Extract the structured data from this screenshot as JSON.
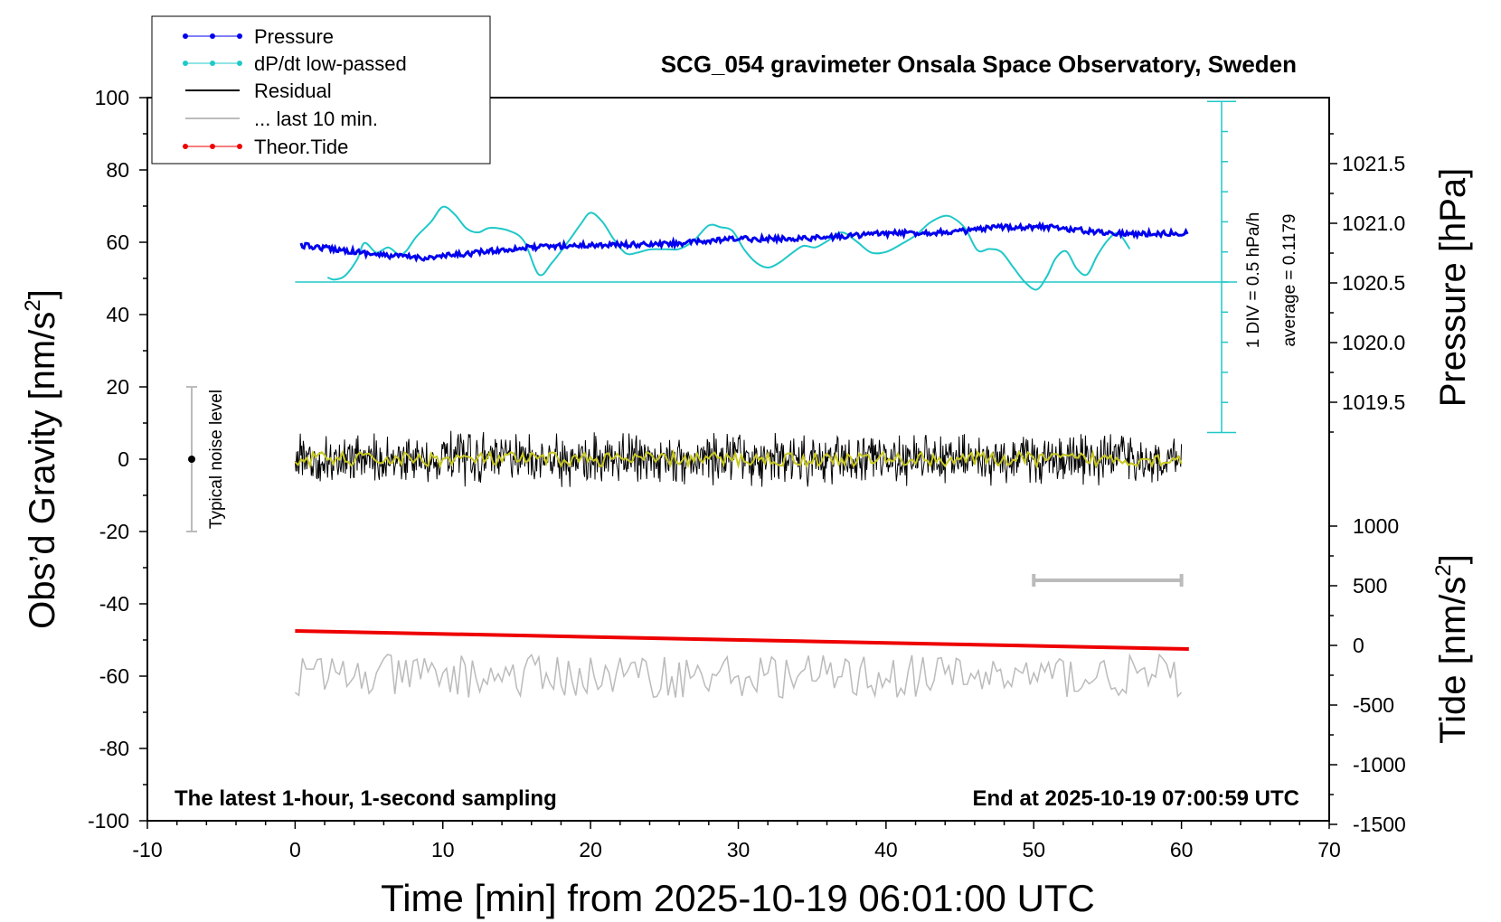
{
  "chart_data": {
    "type": "line",
    "title": "SCG_054 gravimeter Onsala Space Observatory, Sweden",
    "xlabel": "Time [min] from 2025-10-19 06:01:00 UTC",
    "ylabel_left": "Obs’d Gravity [nm/s²]",
    "ylabel_left_main": "Obs’d Gravity [nm/s",
    "ylabel_left_sup": "2",
    "ylabel_left_end": "]",
    "ylabel_right_pressure": "Pressure [hPa]",
    "ylabel_right_tide": "Tide [nm/s²]",
    "ylabel_right_tide_main": "Tide [nm/s",
    "ylabel_right_tide_sup": "2",
    "ylabel_right_tide_end": "]",
    "xlim": [
      -10,
      70
    ],
    "ylim": [
      -100,
      100
    ],
    "x_ticks": [
      -10,
      0,
      10,
      20,
      30,
      40,
      50,
      60,
      70
    ],
    "y_ticks": [
      -100,
      -80,
      -60,
      -40,
      -20,
      0,
      20,
      40,
      60,
      80,
      100
    ],
    "pressure_ticks": [
      "1019.5",
      "1020.0",
      "1020.5",
      "1021.0",
      "1021.5"
    ],
    "pressure_tick_values": [
      1019.5,
      1020.0,
      1020.5,
      1021.0,
      1021.5
    ],
    "tide_ticks": [
      "-1500",
      "-1000",
      "-500",
      "0",
      "500",
      "1000"
    ],
    "tide_tick_values": [
      -1500,
      -1000,
      -500,
      0,
      500,
      1000
    ],
    "legend": {
      "placement": "top-left",
      "entries": [
        "Pressure",
        "dP/dt low-passed",
        "Residual",
        "... last 10 min.",
        "Theor.Tide"
      ]
    },
    "annotations": {
      "bottom_left": "The latest 1-hour, 1-second sampling",
      "bottom_right": "End at 2025-10-19 07:00:59 UTC",
      "noise_label": "Typical noise level",
      "dpdt_scale": "1 DIV = 0.5 hPa/h",
      "dpdt_average": "average = 0.1179"
    },
    "series": [
      {
        "name": "Pressure",
        "unit": "hPa",
        "color": "#0000ee",
        "x": [
          0,
          3,
          6,
          9,
          12,
          15,
          18,
          21,
          24,
          27,
          30,
          33,
          36,
          39,
          42,
          45,
          48,
          51,
          54,
          57,
          60
        ],
        "y": [
          1020.82,
          1020.78,
          1020.73,
          1020.71,
          1020.75,
          1020.79,
          1020.81,
          1020.82,
          1020.82,
          1020.84,
          1020.87,
          1020.87,
          1020.88,
          1020.91,
          1020.92,
          1020.93,
          1020.97,
          1020.97,
          1020.93,
          1020.91,
          1020.92
        ]
      },
      {
        "name": "dP/dt low-passed",
        "unit": "hPa/h (1 DIV = 0.5)",
        "color": "#20c8c8",
        "x": [
          2.2,
          2.7,
          3.4,
          4.2,
          4.7,
          5.5,
          6.3,
          7.0,
          7.5,
          8.2,
          9.2,
          10.0,
          10.8,
          11.6,
          12.4,
          13.2,
          14.5,
          15.5,
          16.5,
          17.4,
          18.5,
          19.3,
          20.0,
          20.8,
          21.6,
          22.4,
          23.2,
          24.0,
          25.0,
          26.0,
          27.0,
          28.0,
          28.8,
          29.6,
          30.4,
          31.2,
          32.0,
          32.8,
          33.6,
          34.4,
          35.2,
          36.0,
          37.0,
          38.0,
          39.0,
          40.0,
          41.0,
          42.0,
          43.0,
          44.0,
          44.7,
          45.4,
          46.2,
          47.0,
          47.8,
          48.6,
          49.4,
          50.2,
          50.9,
          51.5,
          52.2,
          52.9,
          53.6,
          54.3,
          55.0,
          55.7,
          56.5
        ],
        "y": [
          0.15,
          0.08,
          0.22,
          0.75,
          1.3,
          0.98,
          1.15,
          0.92,
          1.02,
          1.5,
          2.0,
          2.5,
          2.25,
          1.78,
          1.65,
          1.8,
          1.7,
          1.35,
          0.25,
          0.65,
          1.35,
          1.9,
          2.3,
          2.0,
          1.4,
          0.95,
          0.98,
          1.08,
          1.09,
          1.1,
          1.38,
          1.88,
          1.82,
          1.7,
          1.08,
          0.65,
          0.48,
          0.65,
          0.95,
          1.2,
          1.15,
          1.35,
          1.65,
          1.35,
          0.98,
          1.0,
          1.25,
          1.55,
          1.98,
          2.2,
          2.08,
          1.75,
          1.05,
          1.1,
          1.0,
          0.5,
          0.0,
          -0.25,
          0.2,
          0.8,
          1.02,
          0.45,
          0.25,
          0.88,
          1.38,
          1.62,
          1.1
        ]
      },
      {
        "name": "Residual",
        "unit": "nm/s²",
        "color": "#000000",
        "x": [
          0,
          60
        ],
        "y_range": [
          -8,
          8
        ]
      },
      {
        "name": "Theor.Tide",
        "unit": "nm/s²",
        "color": "#ee0000",
        "x": [
          0,
          60.5
        ],
        "y": [
          33,
          -63
        ]
      }
    ],
    "noise_level": {
      "x": -7,
      "y": 0,
      "range": [
        -20,
        20
      ]
    },
    "last_10_min_span": [
      50,
      60
    ]
  }
}
